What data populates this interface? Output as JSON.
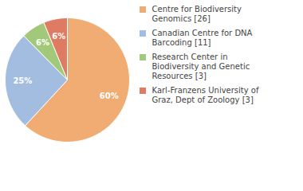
{
  "chart_data": {
    "type": "pie",
    "categories": [
      "Centre for Biodiversity Genomics [26]",
      "Canadian Centre for DNA Barcoding [11]",
      "Research Center in Biodiversity and Genetic Resources [3]",
      "Karl-Franzens University of Graz, Dept of Zoology [3]"
    ],
    "values": [
      60,
      25,
      6,
      6
    ],
    "value_labels": [
      "60%",
      "25%",
      "6%",
      "6%"
    ],
    "colors": [
      "#f0ac72",
      "#a3bde1",
      "#a2c97a",
      "#df7b63"
    ],
    "data_labels": true,
    "legend": "right"
  }
}
